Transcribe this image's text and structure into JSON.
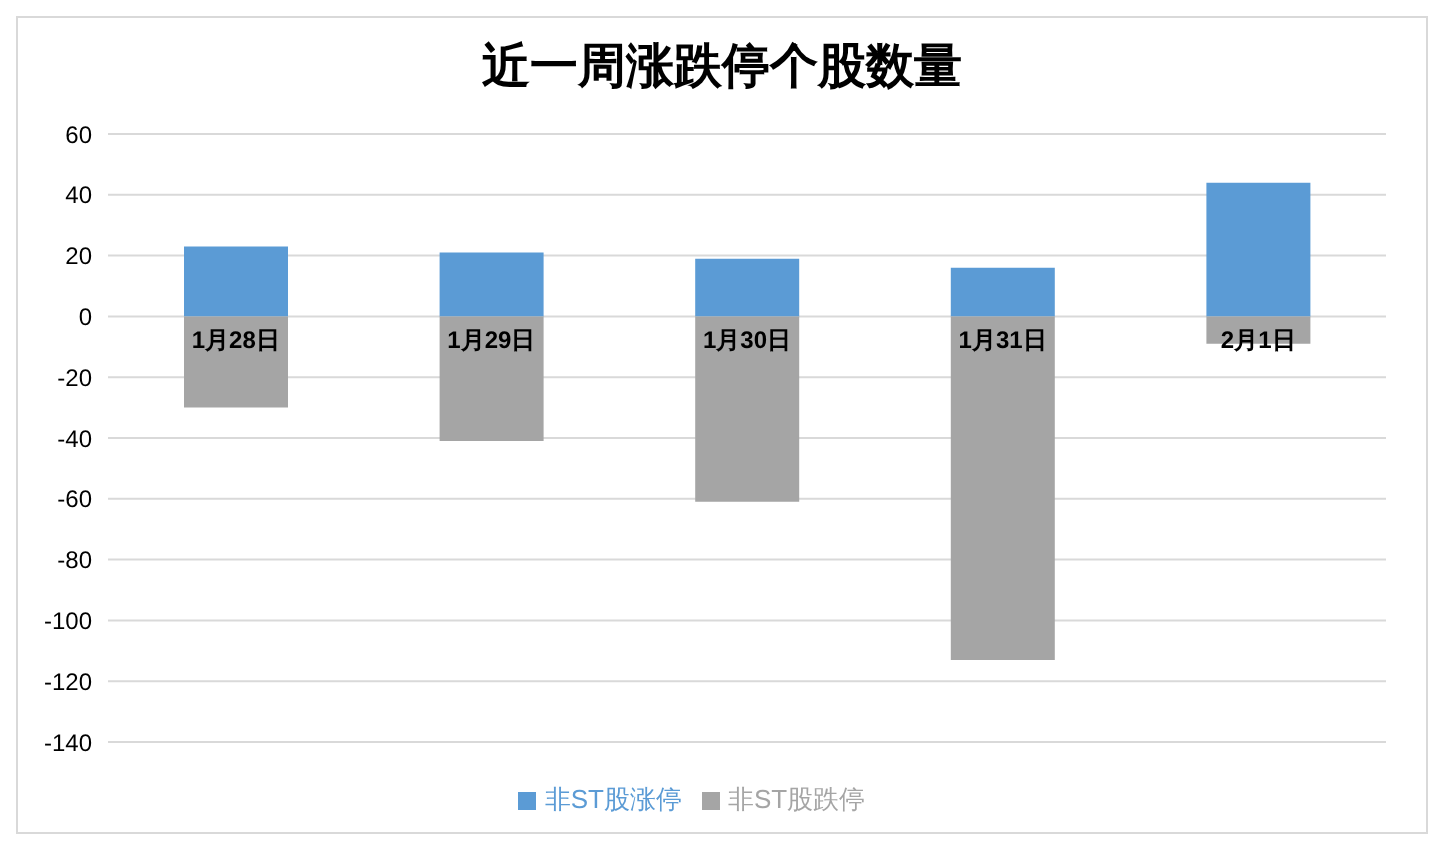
{
  "chart_data": {
    "type": "bar",
    "title": "近一周涨跌停个股数量",
    "categories": [
      "1月28日",
      "1月29日",
      "1月30日",
      "1月31日",
      "2月1日"
    ],
    "series": [
      {
        "name": "非ST股涨停",
        "color": "#5b9bd5",
        "values": [
          23,
          21,
          19,
          16,
          44
        ]
      },
      {
        "name": "非ST股跌停",
        "color": "#a5a5a5",
        "values": [
          -30,
          -41,
          -61,
          -113,
          -9
        ]
      }
    ],
    "stacked": true,
    "ylim": [
      -140,
      60
    ],
    "yticks": [
      -140,
      -120,
      -100,
      -80,
      -60,
      -40,
      -20,
      0,
      20,
      40,
      60
    ],
    "grid": "y",
    "legend": "bottom"
  }
}
